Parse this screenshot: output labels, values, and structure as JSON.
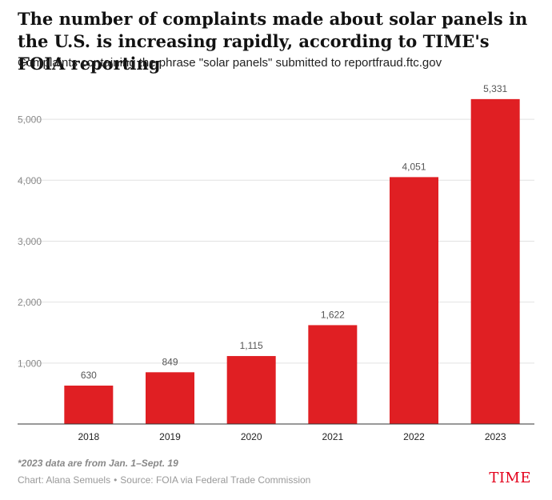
{
  "header": {
    "title": "The number of complaints made about solar panels in the U.S. is increasing rapidly, according to TIME's FOIA reporting",
    "subtitle": "Complaints containing the phrase \"solar panels\" submitted to reportfraud.ftc.gov"
  },
  "footer": {
    "note": "*2023 data are from Jan. 1–Sept. 19",
    "chart_credit": "Chart: Alana Semuels",
    "separator": "•",
    "source": "Source: FOIA via Federal Trade Commission",
    "logo": "TIME"
  },
  "colors": {
    "bar": "#e01f23",
    "grid": "#e2e2e2",
    "axis": "#333333",
    "logo": "#e3001b"
  },
  "chart_data": {
    "type": "bar",
    "categories": [
      "2018",
      "2019",
      "2020",
      "2021",
      "2022",
      "2023"
    ],
    "values": [
      630,
      849,
      1115,
      1622,
      4051,
      5331
    ],
    "value_labels": [
      "630",
      "849",
      "1,115",
      "1,622",
      "4,051",
      "5,331"
    ],
    "y_ticks": [
      1000,
      2000,
      3000,
      4000,
      5000
    ],
    "y_tick_labels": [
      "1,000",
      "2,000",
      "3,000",
      "4,000",
      "5,000"
    ],
    "ylim": [
      0,
      5500
    ],
    "grid": true,
    "xlabel": "",
    "ylabel": ""
  }
}
